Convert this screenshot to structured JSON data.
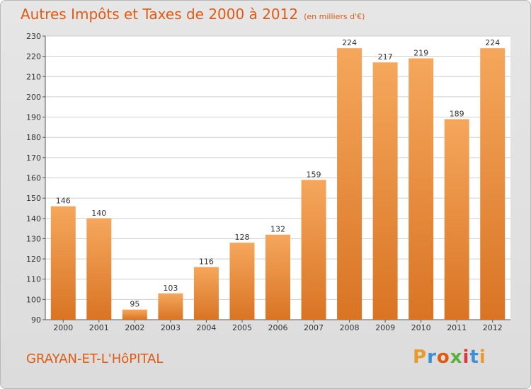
{
  "header": {
    "title": "Autres Impôts et Taxes de 2000 à 2012",
    "subtitle": "(en milliers d'€)"
  },
  "footer": {
    "commune": "GRAYAN-ET-L'HôPITAL",
    "logo": "Proxiti"
  },
  "colors": {
    "accent": "#e05a12",
    "bar_top": "#f5a75c",
    "bar_bottom": "#d97424",
    "logo_letters": [
      "#e89b2d",
      "#3d8fd6",
      "#e05a12",
      "#59b13c",
      "#d83a3a",
      "#3d8fd6",
      "#e89b2d"
    ]
  },
  "chart_data": {
    "type": "bar",
    "categories": [
      "2000",
      "2001",
      "2002",
      "2003",
      "2004",
      "2005",
      "2006",
      "2007",
      "2008",
      "2009",
      "2010",
      "2011",
      "2012"
    ],
    "values": [
      146,
      140,
      95,
      103,
      116,
      128,
      132,
      159,
      224,
      217,
      219,
      189,
      224
    ],
    "title": "Autres Impôts et Taxes de 2000 à 2012",
    "subtitle": "(en milliers d'€)",
    "xlabel": "",
    "ylabel": "",
    "ylim": [
      90,
      230
    ],
    "yticks": [
      90,
      100,
      110,
      120,
      130,
      140,
      150,
      160,
      170,
      180,
      190,
      200,
      210,
      220,
      230
    ],
    "grid": true,
    "legend": "none"
  }
}
